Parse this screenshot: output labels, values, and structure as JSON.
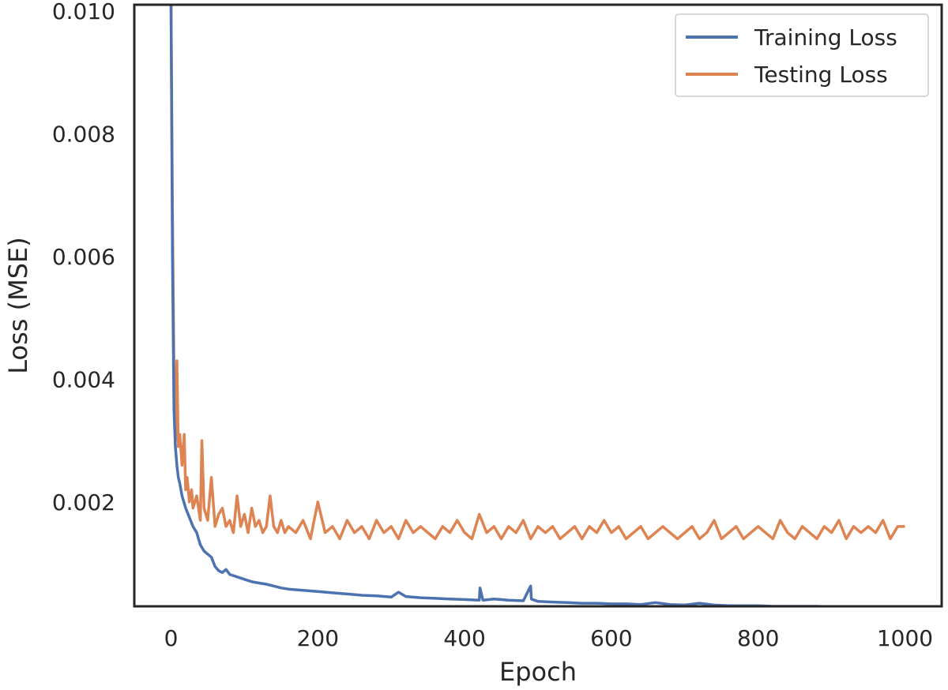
{
  "chart_data": {
    "type": "line",
    "title": "",
    "xlabel": "Epoch",
    "ylabel": "Loss (MSE)",
    "xlim": [
      -50,
      1050
    ],
    "ylim": [
      0.0003,
      0.0101
    ],
    "x_ticks": [
      0,
      200,
      400,
      600,
      800,
      1000
    ],
    "x_tick_labels": [
      "0",
      "200",
      "400",
      "600",
      "800",
      "1000"
    ],
    "y_ticks": [
      0.002,
      0.004,
      0.006,
      0.008,
      0.01
    ],
    "y_tick_labels": [
      "0.002",
      "0.004",
      "0.006",
      "0.008",
      "0.010"
    ],
    "grid": false,
    "legend_position": "top-right",
    "series": [
      {
        "name": "Training Loss",
        "color": "#4c72b0",
        "x": [
          0,
          2,
          4,
          6,
          8,
          10,
          12,
          15,
          20,
          25,
          30,
          35,
          40,
          45,
          50,
          55,
          60,
          65,
          70,
          75,
          80,
          90,
          100,
          110,
          120,
          130,
          140,
          150,
          160,
          180,
          200,
          220,
          240,
          260,
          280,
          300,
          310,
          320,
          340,
          360,
          380,
          400,
          420,
          421,
          425,
          440,
          460,
          480,
          490,
          491,
          495,
          500,
          520,
          540,
          560,
          580,
          600,
          620,
          640,
          660,
          680,
          700,
          720,
          740,
          760,
          780,
          800,
          820,
          840,
          860,
          880,
          900,
          920,
          940,
          960,
          980,
          1000
        ],
        "y": [
          0.0101,
          0.006,
          0.0035,
          0.0029,
          0.0026,
          0.0024,
          0.0023,
          0.0021,
          0.0019,
          0.00175,
          0.0016,
          0.0015,
          0.0013,
          0.0012,
          0.00115,
          0.0011,
          0.00095,
          0.00088,
          0.00085,
          0.0009,
          0.00082,
          0.00078,
          0.00074,
          0.0007,
          0.00068,
          0.00066,
          0.00063,
          0.0006,
          0.00058,
          0.00056,
          0.00054,
          0.00052,
          0.0005,
          0.00048,
          0.00047,
          0.00045,
          0.00053,
          0.00046,
          0.00044,
          0.00043,
          0.00042,
          0.00041,
          0.0004,
          0.0006,
          0.0004,
          0.00042,
          0.0004,
          0.00039,
          0.00063,
          0.00042,
          0.0004,
          0.00038,
          0.00037,
          0.00036,
          0.00035,
          0.00035,
          0.00034,
          0.00034,
          0.00033,
          0.00036,
          0.00033,
          0.00032,
          0.00035,
          0.00032,
          0.00031,
          0.00031,
          0.00031,
          0.0003,
          0.0003,
          0.0003,
          0.0003,
          0.00029,
          0.00029,
          0.00029,
          0.00028,
          0.00028,
          0.00028
        ]
      },
      {
        "name": "Testing Loss",
        "color": "#dd8452",
        "x": [
          0,
          2,
          4,
          6,
          8,
          10,
          12,
          15,
          18,
          20,
          22,
          25,
          28,
          30,
          35,
          40,
          42,
          45,
          50,
          55,
          60,
          65,
          70,
          75,
          80,
          85,
          90,
          95,
          100,
          105,
          110,
          115,
          120,
          125,
          130,
          135,
          140,
          145,
          150,
          155,
          160,
          170,
          180,
          190,
          200,
          210,
          220,
          230,
          240,
          250,
          260,
          270,
          280,
          290,
          300,
          310,
          320,
          330,
          340,
          350,
          360,
          370,
          380,
          390,
          400,
          410,
          420,
          430,
          440,
          450,
          460,
          470,
          480,
          490,
          500,
          510,
          520,
          530,
          540,
          550,
          560,
          570,
          580,
          590,
          600,
          610,
          620,
          630,
          640,
          650,
          660,
          670,
          680,
          690,
          700,
          710,
          720,
          730,
          740,
          750,
          760,
          770,
          780,
          790,
          800,
          810,
          820,
          830,
          840,
          850,
          860,
          870,
          880,
          890,
          900,
          910,
          920,
          930,
          940,
          950,
          960,
          970,
          980,
          990,
          1000
        ],
        "y": [
          0.0101,
          0.0068,
          0.0042,
          0.003,
          0.0043,
          0.0029,
          0.0031,
          0.0026,
          0.0031,
          0.0022,
          0.0024,
          0.002,
          0.0022,
          0.0019,
          0.0021,
          0.0017,
          0.003,
          0.0019,
          0.0017,
          0.0024,
          0.0016,
          0.0018,
          0.0019,
          0.0016,
          0.0017,
          0.0015,
          0.0021,
          0.0016,
          0.0018,
          0.0015,
          0.0019,
          0.0016,
          0.0017,
          0.0015,
          0.0016,
          0.0021,
          0.0016,
          0.0015,
          0.0017,
          0.0015,
          0.0016,
          0.0015,
          0.0017,
          0.0014,
          0.002,
          0.0015,
          0.0016,
          0.0014,
          0.0017,
          0.0015,
          0.0016,
          0.0014,
          0.0017,
          0.0015,
          0.0016,
          0.0014,
          0.0017,
          0.0015,
          0.0016,
          0.0015,
          0.0014,
          0.0016,
          0.0015,
          0.0017,
          0.0015,
          0.0014,
          0.0018,
          0.0015,
          0.0016,
          0.0014,
          0.0016,
          0.0015,
          0.0017,
          0.0014,
          0.0016,
          0.0015,
          0.0016,
          0.0014,
          0.0015,
          0.0016,
          0.0014,
          0.0016,
          0.0015,
          0.0017,
          0.0015,
          0.0016,
          0.0014,
          0.0015,
          0.0016,
          0.0014,
          0.0015,
          0.0016,
          0.0015,
          0.0014,
          0.0015,
          0.0016,
          0.0014,
          0.0015,
          0.0017,
          0.0014,
          0.0015,
          0.0016,
          0.0014,
          0.0015,
          0.0016,
          0.0015,
          0.0014,
          0.0017,
          0.0015,
          0.0014,
          0.0016,
          0.0015,
          0.0014,
          0.0016,
          0.0015,
          0.0017,
          0.0014,
          0.0016,
          0.0015,
          0.0016,
          0.0015,
          0.0017,
          0.0014,
          0.0016,
          0.0016
        ]
      }
    ]
  }
}
